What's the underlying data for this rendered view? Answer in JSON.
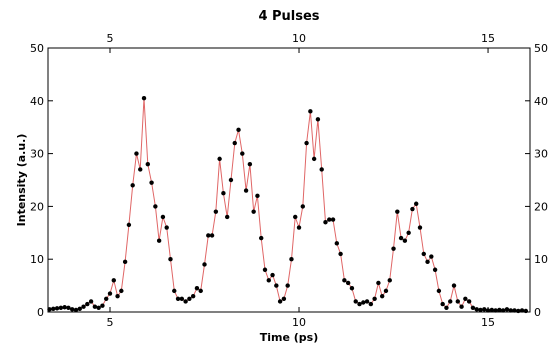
{
  "chart_data": {
    "type": "line",
    "title": "4 Pulses",
    "x_label": "Time (ps)",
    "y_label": "Intensity (a.u.)",
    "xlim": [
      3.36,
      16.11
    ],
    "ylim": [
      0,
      50
    ],
    "xticks": [
      5,
      10,
      15
    ],
    "yticks": [
      0,
      10,
      20,
      30,
      40,
      50
    ],
    "x": [
      3.4,
      3.5,
      3.6,
      3.7,
      3.8,
      3.9,
      4.0,
      4.1,
      4.2,
      4.3,
      4.4,
      4.5,
      4.6,
      4.7,
      4.8,
      4.9,
      5.0,
      5.1,
      5.2,
      5.3,
      5.4,
      5.5,
      5.6,
      5.7,
      5.8,
      5.9,
      6.0,
      6.1,
      6.2,
      6.3,
      6.4,
      6.5,
      6.6,
      6.7,
      6.8,
      6.9,
      7.0,
      7.1,
      7.2,
      7.3,
      7.4,
      7.5,
      7.6,
      7.7,
      7.8,
      7.9,
      8.0,
      8.1,
      8.2,
      8.3,
      8.4,
      8.5,
      8.6,
      8.7,
      8.8,
      8.9,
      9.0,
      9.1,
      9.2,
      9.3,
      9.4,
      9.5,
      9.6,
      9.7,
      9.8,
      9.9,
      10.0,
      10.1,
      10.2,
      10.3,
      10.4,
      10.5,
      10.6,
      10.7,
      10.8,
      10.9,
      11.0,
      11.1,
      11.2,
      11.3,
      11.4,
      11.5,
      11.6,
      11.7,
      11.8,
      11.9,
      12.0,
      12.1,
      12.2,
      12.3,
      12.4,
      12.5,
      12.6,
      12.7,
      12.8,
      12.9,
      13.0,
      13.1,
      13.2,
      13.3,
      13.4,
      13.5,
      13.6,
      13.7,
      13.8,
      13.9,
      14.0,
      14.1,
      14.2,
      14.3,
      14.4,
      14.5,
      14.6,
      14.7,
      14.8,
      14.9,
      15.0,
      15.1,
      15.2,
      15.3,
      15.4,
      15.5,
      15.6,
      15.7,
      15.8,
      15.9,
      16.0
    ],
    "series": [
      {
        "color": "#e06666",
        "marker_color": "#000000",
        "values": [
          0.5,
          0.6,
          0.7,
          0.8,
          0.9,
          0.8,
          0.5,
          0.4,
          0.6,
          1.0,
          1.5,
          2.0,
          1.0,
          0.8,
          1.2,
          2.5,
          3.5,
          6.0,
          3.0,
          4.0,
          9.5,
          16.5,
          24,
          30,
          27,
          40.5,
          28,
          24.5,
          20,
          13.5,
          18,
          16,
          10,
          4,
          2.5,
          2.5,
          2.0,
          2.5,
          3.0,
          4.5,
          4.0,
          9,
          14.5,
          14.5,
          19,
          29,
          22.5,
          18,
          25,
          32,
          34.5,
          30,
          23,
          28,
          19,
          22,
          14,
          8,
          6,
          7,
          5,
          2,
          2.5,
          5,
          10,
          18,
          16,
          20,
          32,
          38,
          29,
          36.5,
          27,
          17,
          17.5,
          17.5,
          13,
          11,
          6,
          5.5,
          4.5,
          2,
          1.5,
          1.8,
          2,
          1.5,
          2.5,
          5.5,
          3,
          4,
          6,
          12,
          19,
          14,
          13.5,
          15,
          19.5,
          20.5,
          16,
          11,
          9.5,
          10.5,
          8,
          4,
          1.5,
          0.8,
          2,
          5,
          2,
          1,
          2.5,
          2,
          0.8,
          0.5,
          0.4,
          0.5,
          0.3,
          0.4,
          0.3,
          0.4,
          0.3,
          0.5,
          0.3,
          0.3,
          0.2,
          0.3,
          0.2
        ]
      }
    ]
  }
}
